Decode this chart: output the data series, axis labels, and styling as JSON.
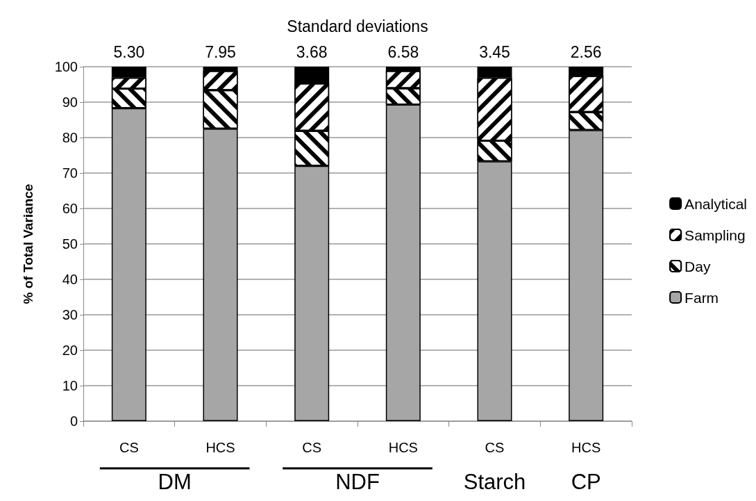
{
  "chart_data": {
    "type": "bar",
    "title": "Standard deviations",
    "ylabel": "% of Total Variance",
    "categories": [
      "CS",
      "HCS",
      "CS",
      "HCS",
      "CS",
      "HCS"
    ],
    "stacked": true,
    "series": [
      {
        "name": "Farm",
        "color": "#a6a6a6",
        "values": [
          88.3,
          82.5,
          72.0,
          89.3,
          73.3,
          82.1
        ]
      },
      {
        "name": "Day",
        "color": "#ffffff",
        "values": [
          5.5,
          10.9,
          9.9,
          4.6,
          5.8,
          5.1
        ]
      },
      {
        "name": "Sampling",
        "color": "#ffffff",
        "values": [
          3.1,
          5.4,
          13.4,
          4.9,
          17.8,
          10.2
        ]
      },
      {
        "name": "Analytical",
        "color": "#000000",
        "values": [
          3.1,
          1.2,
          4.7,
          1.2,
          3.1,
          2.6
        ]
      }
    ],
    "ylim": [
      0,
      100
    ],
    "yticks": [
      0,
      10,
      20,
      30,
      40,
      50,
      60,
      70,
      80,
      90,
      100
    ],
    "grid": "y",
    "legend": "right",
    "annotations": [
      "5.30",
      "7.95",
      "3.68",
      "6.58",
      "3.45",
      "2.56",
      "DM",
      "NDF",
      "Starch",
      "CP"
    ]
  }
}
